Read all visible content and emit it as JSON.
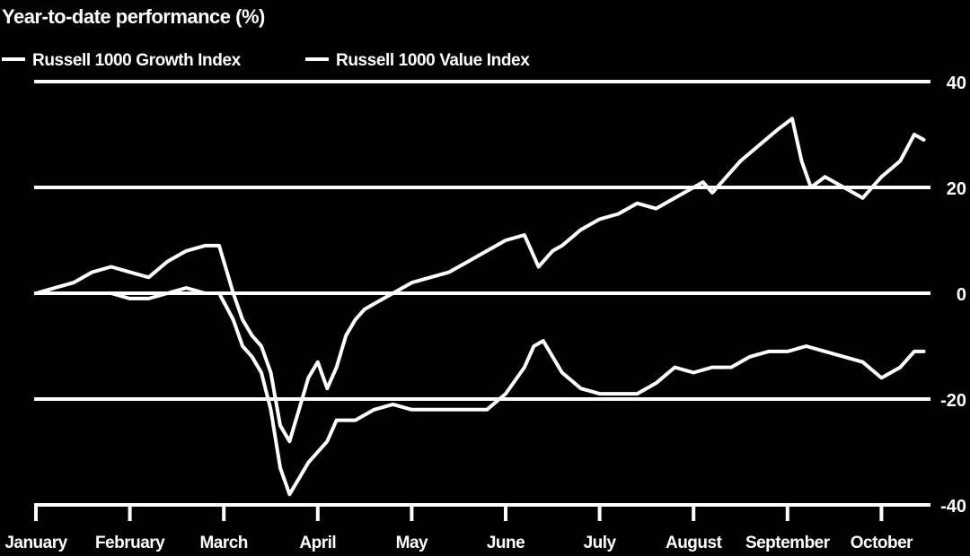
{
  "chart_data": {
    "type": "line",
    "title": "Year-to-date performance (%)",
    "xlabel": "",
    "ylabel": "",
    "ylim": [
      -40,
      40
    ],
    "yticks": [
      40,
      20,
      0,
      -20,
      -40
    ],
    "grid": true,
    "legend": "top-left",
    "x_categories": [
      "January",
      "February",
      "March",
      "April",
      "May",
      "June",
      "July",
      "August",
      "September",
      "October"
    ],
    "x_range": [
      0,
      9.5
    ],
    "series": [
      {
        "name": "Russell 1000 Growth Index",
        "x": [
          0,
          0.2,
          0.4,
          0.6,
          0.8,
          1.0,
          1.2,
          1.4,
          1.6,
          1.8,
          1.95,
          2.1,
          2.2,
          2.3,
          2.4,
          2.5,
          2.6,
          2.7,
          2.8,
          2.9,
          3.0,
          3.1,
          3.2,
          3.3,
          3.4,
          3.5,
          3.6,
          3.8,
          4.0,
          4.2,
          4.4,
          4.6,
          4.8,
          5.0,
          5.2,
          5.35,
          5.5,
          5.6,
          5.8,
          6.0,
          6.2,
          6.4,
          6.6,
          6.8,
          7.0,
          7.1,
          7.2,
          7.35,
          7.5,
          7.7,
          7.9,
          8.05,
          8.15,
          8.25,
          8.4,
          8.6,
          8.8,
          9.0,
          9.2,
          9.35,
          9.45
        ],
        "values": [
          0,
          1,
          2,
          4,
          5,
          4,
          3,
          6,
          8,
          9,
          9,
          0,
          -5,
          -8,
          -10,
          -15,
          -25,
          -28,
          -22,
          -16,
          -13,
          -18,
          -14,
          -8,
          -5,
          -3,
          -2,
          0,
          2,
          3,
          4,
          6,
          8,
          10,
          11,
          5,
          8,
          9,
          12,
          14,
          15,
          17,
          16,
          18,
          20,
          21,
          19,
          22,
          25,
          28,
          31,
          33,
          25,
          20,
          22,
          20,
          18,
          22,
          25,
          30,
          29
        ]
      },
      {
        "name": "Russell 1000 Value Index",
        "x": [
          0,
          0.2,
          0.4,
          0.6,
          0.8,
          1.0,
          1.2,
          1.4,
          1.6,
          1.8,
          1.95,
          2.1,
          2.2,
          2.3,
          2.4,
          2.5,
          2.6,
          2.7,
          2.8,
          2.9,
          3.0,
          3.1,
          3.2,
          3.4,
          3.6,
          3.8,
          4.0,
          4.2,
          4.4,
          4.6,
          4.8,
          5.0,
          5.2,
          5.3,
          5.4,
          5.6,
          5.8,
          6.0,
          6.2,
          6.4,
          6.6,
          6.8,
          7.0,
          7.2,
          7.4,
          7.6,
          7.8,
          8.0,
          8.2,
          8.4,
          8.6,
          8.8,
          9.0,
          9.2,
          9.35,
          9.45
        ],
        "values": [
          0,
          0,
          0,
          0,
          0,
          -1,
          -1,
          0,
          1,
          0,
          0,
          -5,
          -10,
          -12,
          -15,
          -22,
          -33,
          -38,
          -35,
          -32,
          -30,
          -28,
          -24,
          -24,
          -22,
          -21,
          -22,
          -22,
          -22,
          -22,
          -22,
          -19,
          -14,
          -10,
          -9,
          -15,
          -18,
          -19,
          -19,
          -19,
          -17,
          -14,
          -15,
          -14,
          -14,
          -12,
          -11,
          -11,
          -10,
          -11,
          -12,
          -13,
          -16,
          -14,
          -11,
          -11
        ]
      }
    ]
  }
}
